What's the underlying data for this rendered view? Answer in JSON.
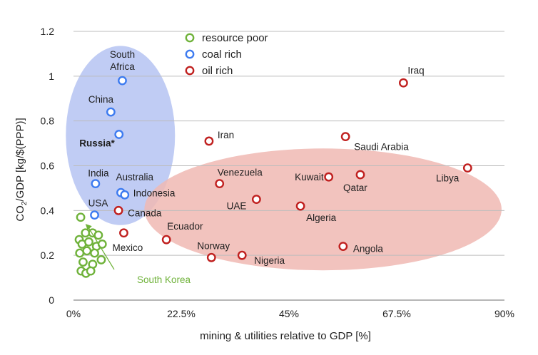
{
  "chart_data": {
    "type": "scatter",
    "xlabel": "mining & utilities relative to GDP [%]",
    "ylabel_parts": [
      "CO",
      "2",
      "/GDP [kg/$(PPP)]"
    ],
    "xlim": [
      0,
      90
    ],
    "ylim": [
      0,
      1.2
    ],
    "x_ticks": [
      {
        "value": 0,
        "label": "0%"
      },
      {
        "value": 22.5,
        "label": "22.5%"
      },
      {
        "value": 45,
        "label": "45%"
      },
      {
        "value": 67.5,
        "label": "67.5%"
      },
      {
        "value": 90,
        "label": "90%"
      }
    ],
    "y_ticks": [
      {
        "value": 0,
        "label": "0"
      },
      {
        "value": 0.2,
        "label": "0.2"
      },
      {
        "value": 0.4,
        "label": "0.4"
      },
      {
        "value": 0.6,
        "label": "0.6"
      },
      {
        "value": 0.8,
        "label": "0.8"
      },
      {
        "value": 1,
        "label": "1"
      },
      {
        "value": 1.2,
        "label": "1.2"
      }
    ],
    "grid": "horizontal",
    "legend_position": "top-center",
    "colors": {
      "resource_poor": "#6fb23a",
      "coal_rich": "#3d7bf0",
      "oil_rich": "#c0201f",
      "coal_region": "#b5c3f2",
      "oil_region": "#f0b8b3",
      "annotation": "#6fb23a",
      "grid": "#bdbdbd"
    },
    "series": [
      {
        "name": "resource poor",
        "key": "resource_poor",
        "points": [
          {
            "x": 1.5,
            "y": 0.37,
            "label": ""
          },
          {
            "x": 1.2,
            "y": 0.27,
            "label": ""
          },
          {
            "x": 2.5,
            "y": 0.3,
            "label": ""
          },
          {
            "x": 4.0,
            "y": 0.3,
            "label": ""
          },
          {
            "x": 5.2,
            "y": 0.29,
            "label": ""
          },
          {
            "x": 1.8,
            "y": 0.25,
            "label": ""
          },
          {
            "x": 3.2,
            "y": 0.26,
            "label": ""
          },
          {
            "x": 4.8,
            "y": 0.24,
            "label": ""
          },
          {
            "x": 6.0,
            "y": 0.25,
            "label": ""
          },
          {
            "x": 1.3,
            "y": 0.21,
            "label": ""
          },
          {
            "x": 2.8,
            "y": 0.22,
            "label": ""
          },
          {
            "x": 4.4,
            "y": 0.21,
            "label": ""
          },
          {
            "x": 5.8,
            "y": 0.18,
            "label": ""
          },
          {
            "x": 2.0,
            "y": 0.17,
            "label": ""
          },
          {
            "x": 4.0,
            "y": 0.16,
            "label": ""
          },
          {
            "x": 1.6,
            "y": 0.13,
            "label": ""
          },
          {
            "x": 2.6,
            "y": 0.12,
            "label": ""
          },
          {
            "x": 3.6,
            "y": 0.13,
            "label": ""
          }
        ]
      },
      {
        "name": "coal rich",
        "key": "coal_rich",
        "points": [
          {
            "x": 10.2,
            "y": 0.98,
            "label": "South Africa"
          },
          {
            "x": 7.8,
            "y": 0.84,
            "label": "China"
          },
          {
            "x": 9.5,
            "y": 0.74,
            "label": "Russia*"
          },
          {
            "x": 4.6,
            "y": 0.52,
            "label": "India"
          },
          {
            "x": 9.9,
            "y": 0.48,
            "label": "Australia"
          },
          {
            "x": 10.7,
            "y": 0.47,
            "label": "Indonesia"
          },
          {
            "x": 4.4,
            "y": 0.38,
            "label": "USA"
          }
        ]
      },
      {
        "name": "oil rich",
        "key": "oil_rich",
        "points": [
          {
            "x": 68.9,
            "y": 0.97,
            "label": "Iraq"
          },
          {
            "x": 28.3,
            "y": 0.71,
            "label": "Iran"
          },
          {
            "x": 56.8,
            "y": 0.73,
            "label": "Saudi Arabia"
          },
          {
            "x": 82.3,
            "y": 0.59,
            "label": "Libya"
          },
          {
            "x": 30.5,
            "y": 0.52,
            "label": "Venezuela"
          },
          {
            "x": 53.3,
            "y": 0.55,
            "label": "Kuwait"
          },
          {
            "x": 59.9,
            "y": 0.56,
            "label": "Qatar"
          },
          {
            "x": 38.2,
            "y": 0.45,
            "label": "UAE"
          },
          {
            "x": 47.4,
            "y": 0.42,
            "label": "Algeria"
          },
          {
            "x": 9.4,
            "y": 0.4,
            "label": "Canada"
          },
          {
            "x": 10.5,
            "y": 0.3,
            "label": "Mexico"
          },
          {
            "x": 19.4,
            "y": 0.27,
            "label": "Ecuador"
          },
          {
            "x": 28.8,
            "y": 0.19,
            "label": "Norway"
          },
          {
            "x": 35.2,
            "y": 0.2,
            "label": "Nigeria"
          },
          {
            "x": 56.3,
            "y": 0.24,
            "label": "Angola"
          }
        ]
      }
    ],
    "annotations": [
      {
        "text": "South Korea",
        "series": "resource_poor"
      }
    ]
  }
}
